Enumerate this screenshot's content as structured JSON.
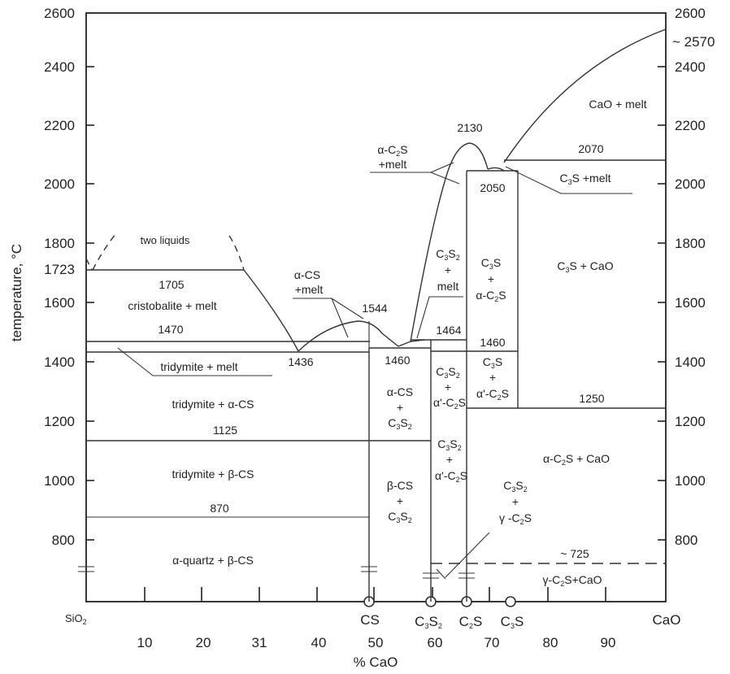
{
  "chart_data": {
    "type": "phase-diagram",
    "xlabel": "% CaO",
    "ylabel": "temperature, °C",
    "xlim": [
      0,
      100
    ],
    "ylim": [
      700,
      2600
    ],
    "x_ticks": [
      10,
      20,
      31,
      40,
      50,
      60,
      70,
      80,
      90
    ],
    "y_ticks": [
      800,
      1000,
      1200,
      1400,
      1600,
      1800,
      2000,
      2200,
      2400,
      2600
    ],
    "y_special_left": "1723",
    "right_top_label": "~ 2570",
    "compounds": [
      {
        "name": "SiO2",
        "x": 0
      },
      {
        "name": "CS",
        "x": 48.3
      },
      {
        "name": "C3S2",
        "x": 58.2
      },
      {
        "name": "C2S",
        "x": 65.1
      },
      {
        "name": "C3S",
        "x": 73.7
      },
      {
        "name": "CaO",
        "x": 100
      }
    ],
    "isotherms": [
      {
        "label": "1705",
        "temperature": 1705
      },
      {
        "label": "1470",
        "temperature": 1470
      },
      {
        "label": "1436",
        "temperature": 1436
      },
      {
        "label": "1544",
        "temperature": 1544
      },
      {
        "label": "1460",
        "temperature": 1460
      },
      {
        "label": "1464",
        "temperature": 1464
      },
      {
        "label": "1460",
        "temperature": 1460
      },
      {
        "label": "1250",
        "temperature": 1250
      },
      {
        "label": "1125",
        "temperature": 1125
      },
      {
        "label": "870",
        "temperature": 870
      },
      {
        "label": "~ 725",
        "temperature": 725
      },
      {
        "label": "2130",
        "temperature": 2130
      },
      {
        "label": "2050",
        "temperature": 2050
      },
      {
        "label": "2070",
        "temperature": 2070
      }
    ],
    "phase_fields": [
      "two liquids",
      "cristobalite + melt",
      "tridymite + melt",
      "tridymite + α-CS",
      "tridymite + β-CS",
      "α-quartz + β-CS",
      "α-CS +melt",
      "α-CS + C3S2",
      "β-CS + C3S2",
      "C3S2 + melt",
      "C3S2 + α'-C2S",
      "C3S2 + α'-C2S",
      "α-C2S +melt",
      "C3S + α-C2S",
      "C3S + α'-C2S",
      "C3S2 + γ-C2S",
      "CaO + melt",
      "C3S +melt",
      "C3S + CaO",
      "α-C2S + CaO",
      "γ-C2S+CaO"
    ]
  }
}
